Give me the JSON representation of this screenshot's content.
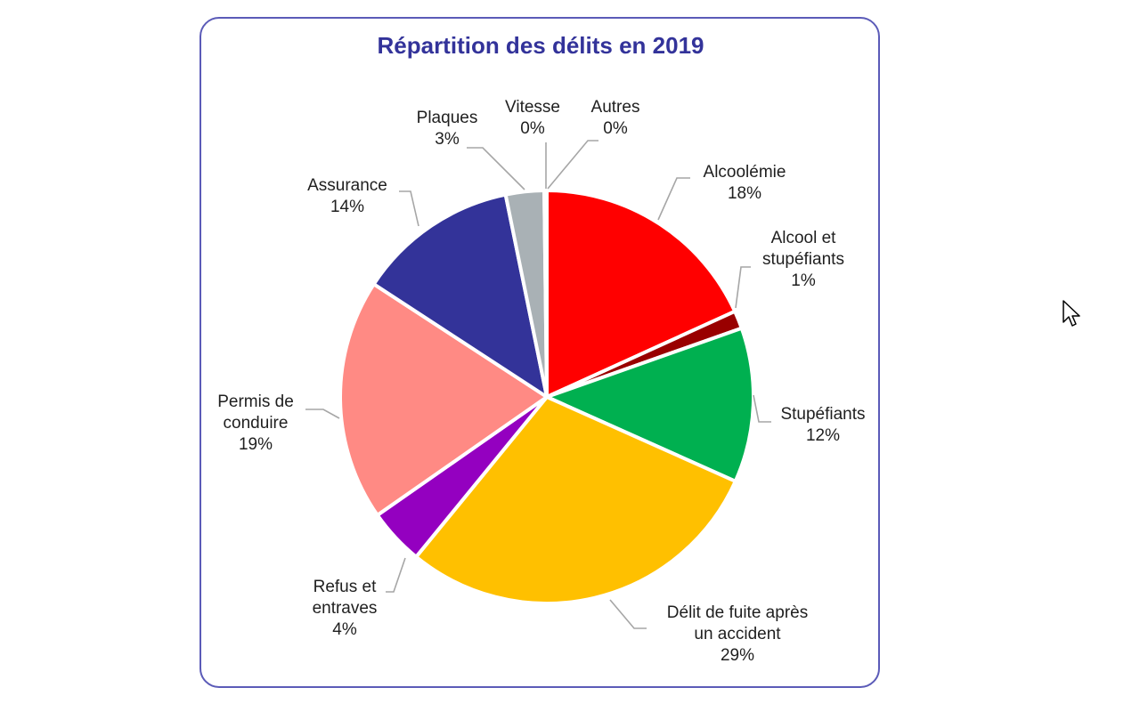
{
  "chart_data": {
    "type": "pie",
    "title": "Répartition des délits en 2019",
    "unit": "%",
    "start_angle": "12 o'clock, clockwise",
    "slices": [
      {
        "label": "Alcoolémie",
        "value": 18,
        "color": "#ff0000"
      },
      {
        "label": "Alcool et stupéfiants",
        "value": 1,
        "color": "#990000"
      },
      {
        "label": "Stupéfiants",
        "value": 12,
        "color": "#00b050"
      },
      {
        "label": "Délit de fuite après un accident",
        "value": 29,
        "color": "#ffc000"
      },
      {
        "label": "Refus et entraves",
        "value": 4,
        "color": "#9400c0"
      },
      {
        "label": "Permis de conduire",
        "value": 19,
        "color": "#ff8a84"
      },
      {
        "label": "Assurance",
        "value": 14,
        "color": "#333399"
      },
      {
        "label": "Plaques",
        "value": 3,
        "color": "#a9b1b5"
      },
      {
        "label": "Vitesse",
        "value": 0,
        "color": "#a9b1b5"
      },
      {
        "label": "Autres",
        "value": 0,
        "color": "#a9b1b5"
      }
    ],
    "legend": "none (data labels with leader lines)"
  },
  "title": "Répartition des délits en 2019",
  "labels": {
    "alcoolemie": {
      "l1": "Alcoolémie",
      "pct": "18%"
    },
    "alcool_stup": {
      "l1": "Alcool et",
      "l2": "stupéfiants",
      "pct": "1%"
    },
    "stupefiants": {
      "l1": "Stupéfiants",
      "pct": "12%"
    },
    "delit_fuite": {
      "l1": "Délit de fuite après",
      "l2": "un accident",
      "pct": "29%"
    },
    "refus": {
      "l1": "Refus et",
      "l2": "entraves",
      "pct": "4%"
    },
    "permis": {
      "l1": "Permis de",
      "l2": "conduire",
      "pct": "19%"
    },
    "assurance": {
      "l1": "Assurance",
      "pct": "14%"
    },
    "plaques": {
      "l1": "Plaques",
      "pct": "3%"
    },
    "vitesse": {
      "l1": "Vitesse",
      "pct": "0%"
    },
    "autres": {
      "l1": "Autres",
      "pct": "0%"
    }
  },
  "colors": {
    "frame_border": "#5b5bb8",
    "title": "#33339a",
    "leader_line": "#a6a6a6"
  }
}
